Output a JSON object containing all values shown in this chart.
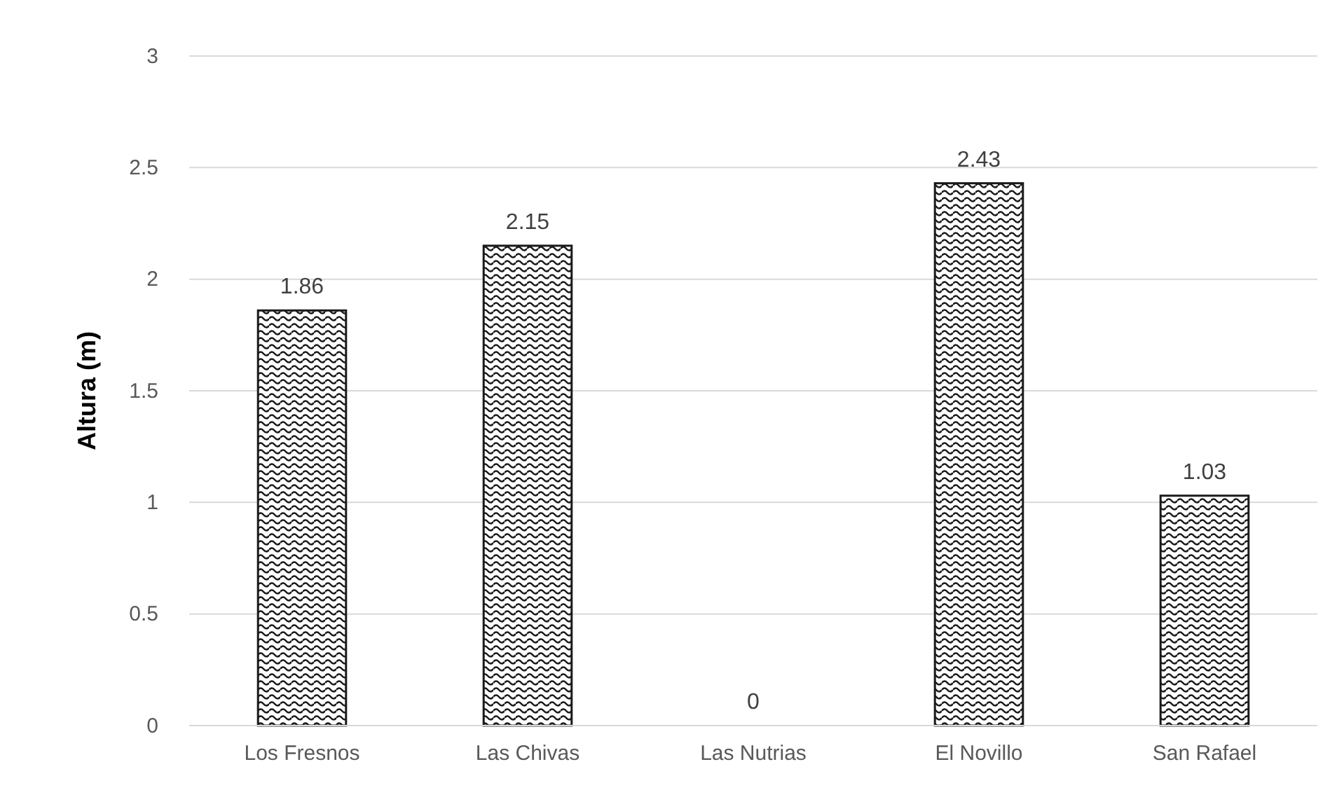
{
  "chart_data": {
    "type": "bar",
    "ylabel": "Altura (m)",
    "categories": [
      "Los Fresnos",
      "Las Chivas",
      "Las Nutrias",
      "El Novillo",
      "San Rafael"
    ],
    "values": [
      1.86,
      2.15,
      0,
      2.43,
      1.03
    ],
    "color": "#1a1a1a",
    "ylim": [
      0,
      3
    ],
    "yticks": [
      0,
      0.5,
      1,
      1.5,
      2,
      2.5,
      3
    ],
    "grid": "y",
    "data_labels": true
  }
}
